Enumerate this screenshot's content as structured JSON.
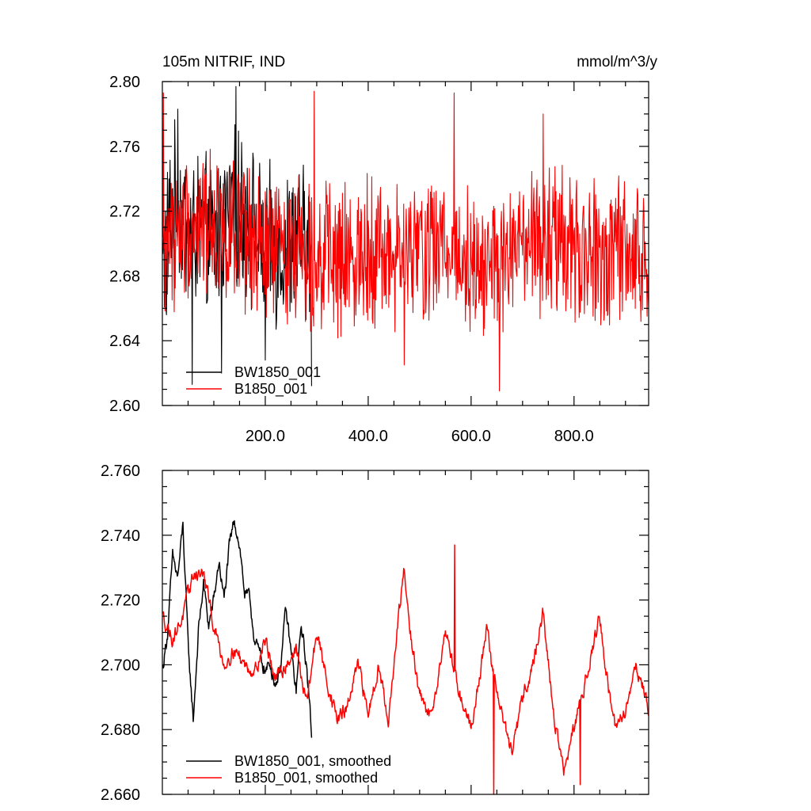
{
  "chart_data": [
    {
      "type": "line",
      "title": "105m NITRIF, IND",
      "units": "mmol/m^3/y",
      "xlim": [
        0,
        945
      ],
      "ylim": [
        2.6,
        2.8
      ],
      "yticks": [
        2.6,
        2.64,
        2.68,
        2.72,
        2.76,
        2.8
      ],
      "ytick_labels": [
        "2.60",
        "2.64",
        "2.68",
        "2.72",
        "2.76",
        "2.80"
      ],
      "xticks": [
        200,
        400,
        600,
        800
      ],
      "xtick_labels": [
        "200.0",
        "400.0",
        "600.0",
        "800.0"
      ],
      "grid": false,
      "legend_position": "bottom-left",
      "series": [
        {
          "name": "BW1850_001",
          "color": "#000000",
          "x_start": 1,
          "x_end": 290,
          "mean": 2.71,
          "amplitude": 0.085,
          "anchors": [
            [
              1,
              2.685
            ],
            [
              20,
              2.725
            ],
            [
              50,
              2.71
            ],
            [
              80,
              2.705
            ],
            [
              100,
              2.7
            ],
            [
              130,
              2.72
            ],
            [
              160,
              2.72
            ],
            [
              190,
              2.7
            ],
            [
              220,
              2.695
            ],
            [
              250,
              2.7
            ],
            [
              275,
              2.7
            ],
            [
              290,
              2.69
            ]
          ],
          "extremes": [
            [
              8,
              2.656
            ],
            [
              30,
              2.783
            ],
            [
              58,
              2.613
            ],
            [
              115,
              2.62
            ],
            [
              143,
              2.797
            ],
            [
              200,
              2.628
            ],
            [
              290,
              2.612
            ]
          ]
        },
        {
          "name": "B1850_001",
          "color": "#ff0000",
          "x_start": 1,
          "x_end": 945,
          "mean": 2.7,
          "amplitude": 0.08,
          "anchors": [
            [
              1,
              2.7
            ],
            [
              50,
              2.71
            ],
            [
              100,
              2.715
            ],
            [
              150,
              2.7
            ],
            [
              200,
              2.695
            ],
            [
              250,
              2.7
            ],
            [
              300,
              2.695
            ],
            [
              350,
              2.685
            ],
            [
              400,
              2.7
            ],
            [
              450,
              2.69
            ],
            [
              500,
              2.695
            ],
            [
              550,
              2.7
            ],
            [
              600,
              2.69
            ],
            [
              650,
              2.685
            ],
            [
              700,
              2.695
            ],
            [
              750,
              2.7
            ],
            [
              800,
              2.695
            ],
            [
              850,
              2.69
            ],
            [
              900,
              2.695
            ],
            [
              945,
              2.685
            ]
          ],
          "extremes": [
            [
              2,
              2.793
            ],
            [
              295,
              2.794
            ],
            [
              567,
              2.793
            ],
            [
              655,
              2.609
            ],
            [
              740,
              2.78
            ],
            [
              470,
              2.625
            ]
          ]
        }
      ]
    },
    {
      "type": "line",
      "xlim": [
        0,
        945
      ],
      "ylim": [
        2.66,
        2.76
      ],
      "yticks": [
        2.66,
        2.68,
        2.7,
        2.72,
        2.74,
        2.76
      ],
      "ytick_labels": [
        "2.660",
        "2.680",
        "2.700",
        "2.720",
        "2.740",
        "2.760"
      ],
      "xticks": [
        200,
        400,
        600,
        800
      ],
      "grid": false,
      "legend_position": "bottom-left",
      "series": [
        {
          "name": "BW1850_001, smoothed",
          "color": "#000000",
          "x_start": 1,
          "x_end": 290,
          "anchors": [
            [
              1,
              2.699
            ],
            [
              10,
              2.71
            ],
            [
              20,
              2.733
            ],
            [
              30,
              2.727
            ],
            [
              40,
              2.743
            ],
            [
              50,
              2.706
            ],
            [
              60,
              2.683
            ],
            [
              70,
              2.71
            ],
            [
              80,
              2.725
            ],
            [
              90,
              2.712
            ],
            [
              100,
              2.72
            ],
            [
              110,
              2.732
            ],
            [
              120,
              2.72
            ],
            [
              130,
              2.736
            ],
            [
              140,
              2.745
            ],
            [
              150,
              2.737
            ],
            [
              160,
              2.722
            ],
            [
              170,
              2.72
            ],
            [
              180,
              2.707
            ],
            [
              190,
              2.703
            ],
            [
              200,
              2.698
            ],
            [
              210,
              2.7
            ],
            [
              220,
              2.694
            ],
            [
              230,
              2.7
            ],
            [
              240,
              2.717
            ],
            [
              250,
              2.704
            ],
            [
              260,
              2.692
            ],
            [
              270,
              2.712
            ],
            [
              280,
              2.7
            ],
            [
              290,
              2.679
            ]
          ]
        },
        {
          "name": "B1850_001, smoothed",
          "color": "#ff0000",
          "x_start": 1,
          "x_end": 945,
          "anchors": [
            [
              1,
              2.715
            ],
            [
              20,
              2.708
            ],
            [
              40,
              2.715
            ],
            [
              60,
              2.728
            ],
            [
              80,
              2.728
            ],
            [
              100,
              2.712
            ],
            [
              120,
              2.7
            ],
            [
              140,
              2.705
            ],
            [
              160,
              2.7
            ],
            [
              180,
              2.698
            ],
            [
              200,
              2.708
            ],
            [
              220,
              2.695
            ],
            [
              240,
              2.7
            ],
            [
              260,
              2.705
            ],
            [
              280,
              2.688
            ],
            [
              300,
              2.71
            ],
            [
              320,
              2.695
            ],
            [
              340,
              2.683
            ],
            [
              360,
              2.687
            ],
            [
              380,
              2.7
            ],
            [
              400,
              2.685
            ],
            [
              420,
              2.7
            ],
            [
              440,
              2.683
            ],
            [
              460,
              2.716
            ],
            [
              470,
              2.729
            ],
            [
              480,
              2.712
            ],
            [
              500,
              2.69
            ],
            [
              520,
              2.684
            ],
            [
              540,
              2.7
            ],
            [
              550,
              2.712
            ],
            [
              560,
              2.703
            ],
            [
              580,
              2.69
            ],
            [
              600,
              2.681
            ],
            [
              620,
              2.7
            ],
            [
              630,
              2.712
            ],
            [
              640,
              2.7
            ],
            [
              660,
              2.685
            ],
            [
              680,
              2.672
            ],
            [
              700,
              2.69
            ],
            [
              720,
              2.7
            ],
            [
              740,
              2.716
            ],
            [
              760,
              2.685
            ],
            [
              780,
              2.667
            ],
            [
              800,
              2.68
            ],
            [
              820,
              2.694
            ],
            [
              840,
              2.708
            ],
            [
              850,
              2.715
            ],
            [
              860,
              2.7
            ],
            [
              880,
              2.68
            ],
            [
              900,
              2.686
            ],
            [
              920,
              2.7
            ],
            [
              940,
              2.69
            ],
            [
              945,
              2.685
            ]
          ],
          "extremes": [
            [
              568,
              2.737
            ],
            [
              644,
              2.66
            ],
            [
              812,
              2.663
            ]
          ]
        }
      ]
    }
  ]
}
